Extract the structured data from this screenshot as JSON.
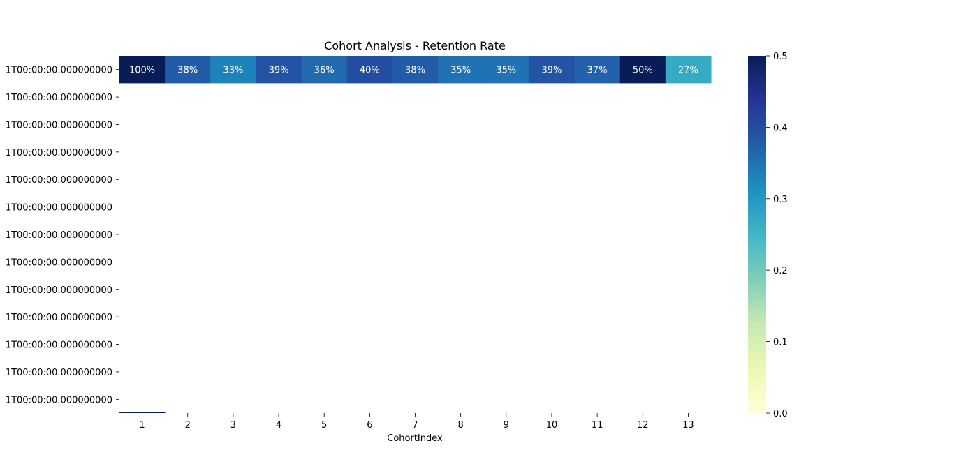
{
  "chart_data": {
    "type": "heatmap",
    "title": "Cohort Analysis - Retention Rate",
    "xlabel": "CohortIndex",
    "ylabel": "",
    "x": [
      "1",
      "2",
      "3",
      "4",
      "5",
      "6",
      "7",
      "8",
      "9",
      "10",
      "11",
      "12",
      "13"
    ],
    "y": [
      "1T00:00:00.000000000",
      "1T00:00:00.000000000",
      "1T00:00:00.000000000",
      "1T00:00:00.000000000",
      "1T00:00:00.000000000",
      "1T00:00:00.000000000",
      "1T00:00:00.000000000",
      "1T00:00:00.000000000",
      "1T00:00:00.000000000",
      "1T00:00:00.000000000",
      "1T00:00:00.000000000",
      "1T00:00:00.000000000",
      "1T00:00:00.000000000"
    ],
    "values": [
      [
        1.0,
        0.38,
        0.33,
        0.39,
        0.36,
        0.4,
        0.38,
        0.35,
        0.35,
        0.39,
        0.37,
        0.5,
        0.27
      ],
      [
        null,
        null,
        null,
        null,
        null,
        null,
        null,
        null,
        null,
        null,
        null,
        null,
        null
      ],
      [
        null,
        null,
        null,
        null,
        null,
        null,
        null,
        null,
        null,
        null,
        null,
        null,
        null
      ],
      [
        null,
        null,
        null,
        null,
        null,
        null,
        null,
        null,
        null,
        null,
        null,
        null,
        null
      ],
      [
        null,
        null,
        null,
        null,
        null,
        null,
        null,
        null,
        null,
        null,
        null,
        null,
        null
      ],
      [
        null,
        null,
        null,
        null,
        null,
        null,
        null,
        null,
        null,
        null,
        null,
        null,
        null
      ],
      [
        null,
        null,
        null,
        null,
        null,
        null,
        null,
        null,
        null,
        null,
        null,
        null,
        null
      ],
      [
        null,
        null,
        null,
        null,
        null,
        null,
        null,
        null,
        null,
        null,
        null,
        null,
        null
      ],
      [
        null,
        null,
        null,
        null,
        null,
        null,
        null,
        null,
        null,
        null,
        null,
        null,
        null
      ],
      [
        null,
        null,
        null,
        null,
        null,
        null,
        null,
        null,
        null,
        null,
        null,
        null,
        null
      ],
      [
        null,
        null,
        null,
        null,
        null,
        null,
        null,
        null,
        null,
        null,
        null,
        null,
        null
      ],
      [
        null,
        null,
        null,
        null,
        null,
        null,
        null,
        null,
        null,
        null,
        null,
        null,
        null
      ],
      [
        0.5,
        null,
        null,
        null,
        null,
        null,
        null,
        null,
        null,
        null,
        null,
        null,
        null
      ]
    ],
    "annotations": [
      [
        "100%",
        "38%",
        "33%",
        "39%",
        "36%",
        "40%",
        "38%",
        "35%",
        "35%",
        "39%",
        "37%",
        "50%",
        "27%"
      ]
    ],
    "colorbar": {
      "vmin": 0.0,
      "vmax": 0.5,
      "ticks": [
        "0.0",
        "0.1",
        "0.2",
        "0.3",
        "0.4",
        "0.5"
      ],
      "colormap": "YlGnBu"
    },
    "grid": false,
    "legend": "colorbar-right"
  }
}
